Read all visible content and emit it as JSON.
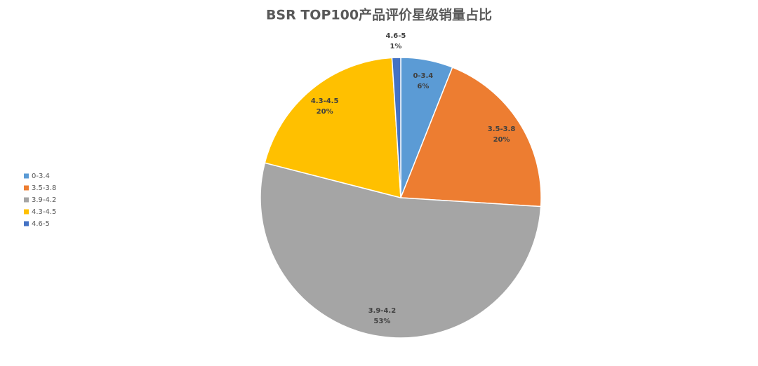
{
  "chart_data": {
    "type": "pie",
    "title": "BSR TOP100产品评价星级销量占比",
    "categories": [
      "0-3.4",
      "3.5-3.8",
      "3.9-4.2",
      "4.3-4.5",
      "4.6-5"
    ],
    "values": [
      6,
      20,
      53,
      20,
      1
    ],
    "value_labels": [
      "6%",
      "20%",
      "53%",
      "20%",
      "1%"
    ],
    "colors": [
      "#5b9bd5",
      "#ed7d31",
      "#a5a5a5",
      "#ffc000",
      "#4472c4"
    ],
    "legend": "left"
  }
}
